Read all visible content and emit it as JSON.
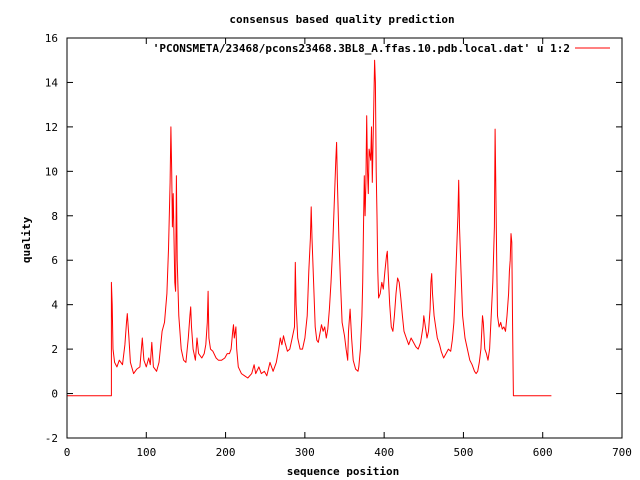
{
  "chart_data": {
    "type": "line",
    "title": "consensus based quality prediction",
    "xlabel": "sequence position",
    "ylabel": "quality",
    "xlim": [
      0,
      700
    ],
    "ylim": [
      -2,
      16
    ],
    "x_ticks": [
      0,
      100,
      200,
      300,
      400,
      500,
      600,
      700
    ],
    "y_ticks": [
      -2,
      0,
      2,
      4,
      6,
      8,
      10,
      12,
      14,
      16
    ],
    "grid": false,
    "legend_position": "top-right",
    "series": [
      {
        "name": "'PCONSMETA/23468/pcons23468.3BL8_A.ffas.10.pdb.local.dat' u 1:2",
        "color": "#ff0000",
        "points": [
          [
            0,
            -0.1
          ],
          [
            56,
            -0.1
          ],
          [
            56,
            5.0
          ],
          [
            57,
            4.0
          ],
          [
            58,
            2.0
          ],
          [
            60,
            1.4
          ],
          [
            63,
            1.2
          ],
          [
            66,
            1.5
          ],
          [
            70,
            1.3
          ],
          [
            73,
            2.2
          ],
          [
            75,
            3.2
          ],
          [
            76,
            3.6
          ],
          [
            78,
            2.6
          ],
          [
            80,
            1.4
          ],
          [
            84,
            0.9
          ],
          [
            88,
            1.1
          ],
          [
            92,
            1.2
          ],
          [
            95,
            2.5
          ],
          [
            97,
            1.5
          ],
          [
            100,
            1.2
          ],
          [
            103,
            1.6
          ],
          [
            105,
            1.3
          ],
          [
            107,
            2.3
          ],
          [
            109,
            1.2
          ],
          [
            113,
            1.0
          ],
          [
            116,
            1.4
          ],
          [
            120,
            2.8
          ],
          [
            123,
            3.2
          ],
          [
            126,
            4.5
          ],
          [
            128,
            6.5
          ],
          [
            130,
            9.5
          ],
          [
            131,
            12.0
          ],
          [
            132,
            10.0
          ],
          [
            133,
            7.5
          ],
          [
            134,
            9.0
          ],
          [
            136,
            5.0
          ],
          [
            137,
            4.6
          ],
          [
            138,
            9.8
          ],
          [
            139,
            6.0
          ],
          [
            141,
            3.5
          ],
          [
            144,
            2.0
          ],
          [
            147,
            1.5
          ],
          [
            150,
            1.4
          ],
          [
            153,
            2.5
          ],
          [
            155,
            3.5
          ],
          [
            156,
            3.9
          ],
          [
            157,
            3.0
          ],
          [
            159,
            2.0
          ],
          [
            162,
            1.5
          ],
          [
            164,
            2.5
          ],
          [
            166,
            1.8
          ],
          [
            170,
            1.6
          ],
          [
            173,
            1.8
          ],
          [
            175,
            2.2
          ],
          [
            177,
            3.2
          ],
          [
            178,
            4.6
          ],
          [
            179,
            2.5
          ],
          [
            181,
            2.0
          ],
          [
            184,
            1.9
          ],
          [
            188,
            1.6
          ],
          [
            191,
            1.5
          ],
          [
            195,
            1.5
          ],
          [
            199,
            1.6
          ],
          [
            202,
            1.8
          ],
          [
            205,
            1.8
          ],
          [
            207,
            2.0
          ],
          [
            209,
            2.8
          ],
          [
            210,
            3.1
          ],
          [
            211,
            2.5
          ],
          [
            213,
            3.0
          ],
          [
            214,
            2.0
          ],
          [
            216,
            1.2
          ],
          [
            220,
            0.9
          ],
          [
            224,
            0.8
          ],
          [
            228,
            0.7
          ],
          [
            233,
            0.9
          ],
          [
            236,
            1.3
          ],
          [
            238,
            0.9
          ],
          [
            242,
            1.2
          ],
          [
            245,
            0.9
          ],
          [
            249,
            1.0
          ],
          [
            252,
            0.8
          ],
          [
            256,
            1.4
          ],
          [
            260,
            1.0
          ],
          [
            264,
            1.4
          ],
          [
            267,
            2.0
          ],
          [
            269,
            2.5
          ],
          [
            271,
            2.2
          ],
          [
            273,
            2.6
          ],
          [
            275,
            2.3
          ],
          [
            278,
            1.9
          ],
          [
            281,
            2.0
          ],
          [
            284,
            2.5
          ],
          [
            287,
            3.0
          ],
          [
            288,
            5.9
          ],
          [
            289,
            4.0
          ],
          [
            291,
            2.5
          ],
          [
            294,
            2.0
          ],
          [
            297,
            2.0
          ],
          [
            300,
            2.5
          ],
          [
            303,
            3.5
          ],
          [
            305,
            5.5
          ],
          [
            307,
            7.0
          ],
          [
            308,
            8.4
          ],
          [
            309,
            7.0
          ],
          [
            311,
            5.0
          ],
          [
            313,
            3.0
          ],
          [
            315,
            2.4
          ],
          [
            317,
            2.3
          ],
          [
            319,
            2.7
          ],
          [
            321,
            3.1
          ],
          [
            323,
            2.8
          ],
          [
            325,
            3.0
          ],
          [
            327,
            2.5
          ],
          [
            329,
            2.9
          ],
          [
            331,
            3.8
          ],
          [
            333,
            5.0
          ],
          [
            335,
            6.5
          ],
          [
            337,
            8.5
          ],
          [
            339,
            10.5
          ],
          [
            340,
            11.3
          ],
          [
            341,
            9.5
          ],
          [
            343,
            7.0
          ],
          [
            345,
            5.0
          ],
          [
            347,
            3.2
          ],
          [
            350,
            2.6
          ],
          [
            352,
            2.0
          ],
          [
            354,
            1.5
          ],
          [
            355,
            2.8
          ],
          [
            357,
            3.8
          ],
          [
            359,
            2.5
          ],
          [
            361,
            1.5
          ],
          [
            364,
            1.1
          ],
          [
            367,
            1.0
          ],
          [
            368,
            1.2
          ],
          [
            370,
            2.0
          ],
          [
            372,
            3.5
          ],
          [
            373,
            5.0
          ],
          [
            374,
            7.5
          ],
          [
            375,
            9.8
          ],
          [
            376,
            8.0
          ],
          [
            377,
            9.5
          ],
          [
            378,
            12.5
          ],
          [
            379,
            10.0
          ],
          [
            380,
            9.0
          ],
          [
            381,
            11.0
          ],
          [
            383,
            10.5
          ],
          [
            384,
            12.0
          ],
          [
            385,
            9.5
          ],
          [
            387,
            13.0
          ],
          [
            388,
            15.0
          ],
          [
            389,
            14.0
          ],
          [
            390,
            10.0
          ],
          [
            391,
            8.0
          ],
          [
            392,
            5.5
          ],
          [
            393,
            4.3
          ],
          [
            395,
            4.5
          ],
          [
            397,
            5.0
          ],
          [
            399,
            4.7
          ],
          [
            401,
            5.5
          ],
          [
            403,
            6.2
          ],
          [
            404,
            6.4
          ],
          [
            405,
            5.5
          ],
          [
            407,
            4.0
          ],
          [
            409,
            3.0
          ],
          [
            411,
            2.8
          ],
          [
            413,
            3.5
          ],
          [
            415,
            4.5
          ],
          [
            417,
            5.2
          ],
          [
            419,
            5.0
          ],
          [
            421,
            4.3
          ],
          [
            423,
            3.5
          ],
          [
            425,
            2.8
          ],
          [
            428,
            2.5
          ],
          [
            431,
            2.2
          ],
          [
            434,
            2.5
          ],
          [
            437,
            2.3
          ],
          [
            440,
            2.1
          ],
          [
            443,
            2.0
          ],
          [
            446,
            2.3
          ],
          [
            449,
            3.0
          ],
          [
            450,
            3.5
          ],
          [
            452,
            3.0
          ],
          [
            454,
            2.5
          ],
          [
            456,
            2.8
          ],
          [
            458,
            3.8
          ],
          [
            459,
            5.0
          ],
          [
            460,
            5.4
          ],
          [
            461,
            4.5
          ],
          [
            463,
            3.5
          ],
          [
            465,
            3.0
          ],
          [
            467,
            2.5
          ],
          [
            470,
            2.2
          ],
          [
            472,
            1.9
          ],
          [
            475,
            1.6
          ],
          [
            478,
            1.8
          ],
          [
            481,
            2.0
          ],
          [
            484,
            1.9
          ],
          [
            486,
            2.4
          ],
          [
            488,
            3.2
          ],
          [
            490,
            5.0
          ],
          [
            492,
            7.0
          ],
          [
            493,
            8.0
          ],
          [
            494,
            9.6
          ],
          [
            495,
            7.5
          ],
          [
            497,
            5.5
          ],
          [
            499,
            3.5
          ],
          [
            502,
            2.5
          ],
          [
            505,
            2.0
          ],
          [
            508,
            1.5
          ],
          [
            511,
            1.3
          ],
          [
            514,
            1.0
          ],
          [
            516,
            0.9
          ],
          [
            518,
            1.0
          ],
          [
            520,
            1.4
          ],
          [
            522,
            2.0
          ],
          [
            524,
            3.5
          ],
          [
            525,
            3.2
          ],
          [
            527,
            2.0
          ],
          [
            529,
            1.8
          ],
          [
            531,
            1.5
          ],
          [
            533,
            2.0
          ],
          [
            535,
            3.5
          ],
          [
            537,
            5.0
          ],
          [
            539,
            7.5
          ],
          [
            540,
            11.9
          ],
          [
            541,
            9.0
          ],
          [
            542,
            6.0
          ],
          [
            543,
            3.5
          ],
          [
            545,
            3.0
          ],
          [
            547,
            3.2
          ],
          [
            549,
            2.9
          ],
          [
            551,
            3.0
          ],
          [
            553,
            2.8
          ],
          [
            555,
            3.5
          ],
          [
            557,
            4.5
          ],
          [
            558,
            5.5
          ],
          [
            559,
            6.0
          ],
          [
            560,
            7.2
          ],
          [
            561,
            6.8
          ],
          [
            562,
            3.0
          ],
          [
            563,
            -0.1
          ],
          [
            611,
            -0.1
          ]
        ]
      }
    ]
  }
}
